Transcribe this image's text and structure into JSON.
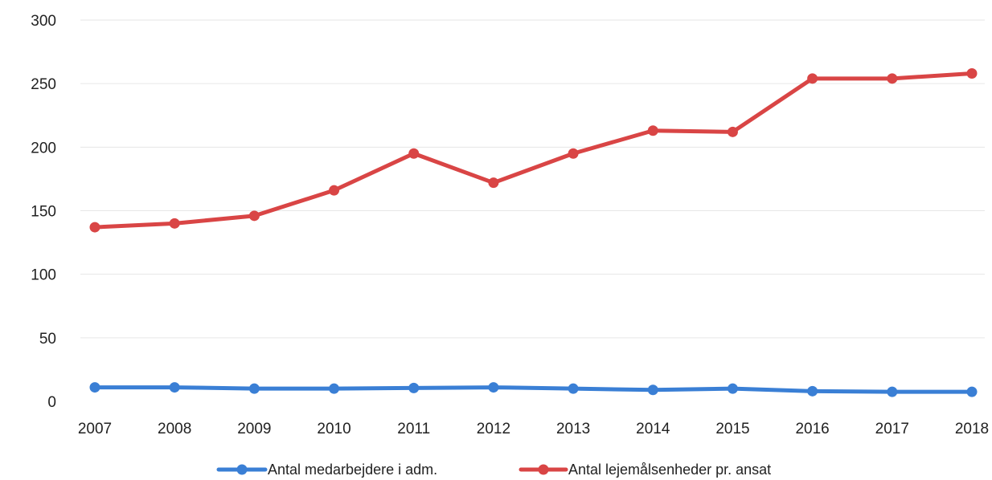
{
  "chart_data": {
    "type": "line",
    "title": "",
    "xlabel": "",
    "ylabel": "",
    "categories": [
      "2007",
      "2008",
      "2009",
      "2010",
      "2011",
      "2012",
      "2013",
      "2014",
      "2015",
      "2016",
      "2017",
      "2018"
    ],
    "ylim": [
      0,
      300
    ],
    "yticks": [
      "0",
      "50",
      "100",
      "150",
      "200",
      "250",
      "300"
    ],
    "grid": true,
    "legend_position": "bottom",
    "series": [
      {
        "name": "Antal medarbejdere i adm.",
        "color": "#3a7fd5",
        "values": [
          11,
          11,
          10,
          10,
          10.5,
          11,
          10,
          9,
          10,
          8,
          7.5,
          7.5
        ]
      },
      {
        "name": "Antal lejemålsenheder pr. ansat",
        "color": "#d94545",
        "values": [
          137,
          140,
          146,
          166,
          195,
          172,
          195,
          213,
          212,
          254,
          254,
          258
        ]
      }
    ]
  }
}
